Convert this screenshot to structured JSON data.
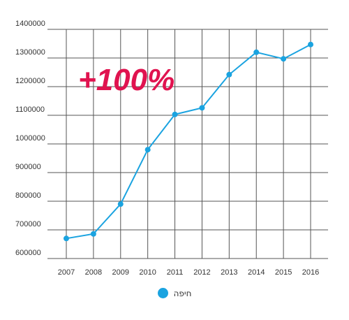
{
  "chart_data": {
    "type": "line",
    "x": [
      "2007",
      "2008",
      "2009",
      "2010",
      "2011",
      "2012",
      "2013",
      "2014",
      "2015",
      "2016"
    ],
    "series": [
      {
        "name": "חיפה",
        "values": [
          670000,
          686000,
          790000,
          980000,
          1103000,
          1126000,
          1242000,
          1320000,
          1297000,
          1347000
        ]
      }
    ],
    "ylim": [
      600000,
      1400000
    ],
    "yticks": [
      "1400000",
      "1300000",
      "1200000",
      "1100000",
      "1000000",
      "900000",
      "800000",
      "700000",
      "600000"
    ],
    "grid": true,
    "legend_position": "bottom-center",
    "annotation": "+100%"
  },
  "colors": {
    "series": "#1aa3e0",
    "annotation": "#e0134f",
    "grid": "#555555",
    "text": "#333333"
  }
}
